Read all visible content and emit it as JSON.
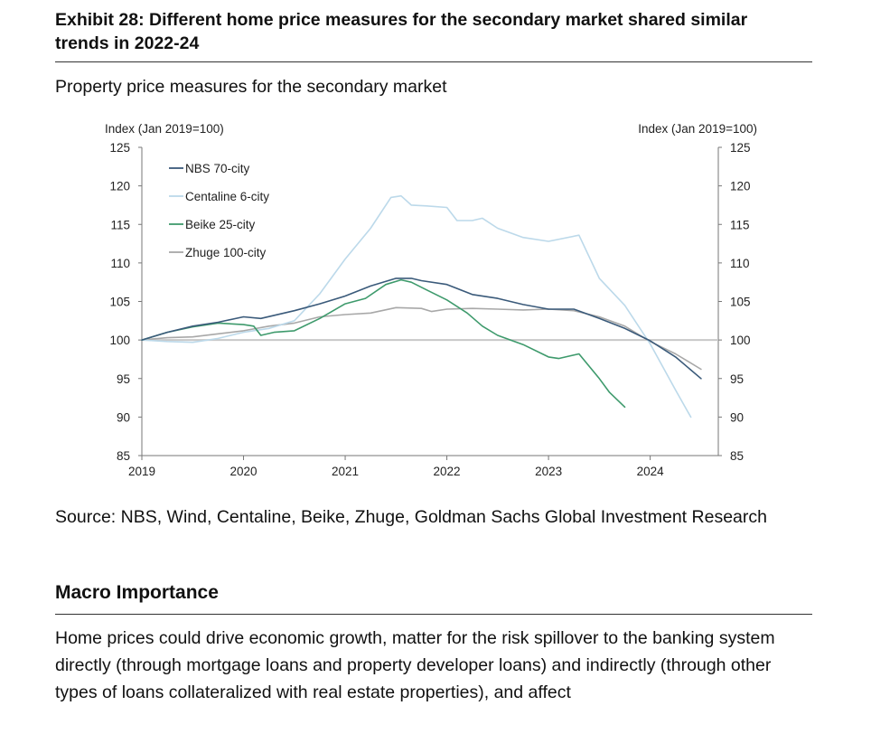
{
  "exhibit": {
    "title": "Exhibit 28: Different home price measures for the secondary market shared similar trends in 2022-24",
    "subtitle": "Property price measures for the secondary market",
    "source": "Source: NBS, Wind, Centaline, Beike, Zhuge, Goldman Sachs Global Investment Research"
  },
  "section": {
    "heading": "Macro Importance",
    "body": "Home prices could drive economic growth, matter for the risk spillover to the banking system directly (through mortgage loans and property developer loans) and indirectly (through other types of loans collateralized with real estate properties), and affect"
  },
  "chart_data": {
    "type": "line",
    "title": "",
    "ylabel_left": "Index (Jan 2019=100)",
    "ylabel_right": "Index (Jan 2019=100)",
    "ylim": [
      85,
      125
    ],
    "yticks": [
      85,
      90,
      95,
      100,
      105,
      110,
      115,
      120,
      125
    ],
    "xlim": [
      2019.0,
      2024.67
    ],
    "xticks": [
      2019,
      2020,
      2021,
      2022,
      2023,
      2024
    ],
    "reference_line": 100,
    "grid": false,
    "legend_position": "top-left",
    "series": [
      {
        "name": "NBS 70-city",
        "color": "#3a5a7a",
        "x": [
          2019.0,
          2019.25,
          2019.5,
          2019.75,
          2020.0,
          2020.17,
          2020.5,
          2020.75,
          2021.0,
          2021.25,
          2021.5,
          2021.65,
          2021.75,
          2022.0,
          2022.25,
          2022.5,
          2022.75,
          2023.0,
          2023.25,
          2023.5,
          2023.75,
          2024.0,
          2024.25,
          2024.5
        ],
        "y": [
          100.0,
          101.0,
          101.8,
          102.3,
          103.0,
          102.8,
          103.8,
          104.7,
          105.7,
          107.0,
          108.0,
          108.0,
          107.7,
          107.2,
          105.9,
          105.4,
          104.6,
          104.0,
          104.0,
          102.8,
          101.5,
          99.9,
          97.8,
          95.0
        ]
      },
      {
        "name": "Centaline 6-city",
        "color": "#bcd9ea",
        "x": [
          2019.0,
          2019.25,
          2019.5,
          2019.75,
          2020.0,
          2020.25,
          2020.5,
          2020.75,
          2021.0,
          2021.25,
          2021.45,
          2021.55,
          2021.65,
          2021.8,
          2022.0,
          2022.1,
          2022.25,
          2022.35,
          2022.5,
          2022.75,
          2023.0,
          2023.3,
          2023.5,
          2023.75,
          2024.0,
          2024.25,
          2024.4
        ],
        "y": [
          100.0,
          99.8,
          99.7,
          100.2,
          101.0,
          101.5,
          102.5,
          106.0,
          110.5,
          114.5,
          118.5,
          118.7,
          117.5,
          117.4,
          117.2,
          115.5,
          115.5,
          115.8,
          114.5,
          113.3,
          112.8,
          113.6,
          108.0,
          104.5,
          99.5,
          93.5,
          90.0
        ]
      },
      {
        "name": "Beike 25-city",
        "color": "#3e9a6c",
        "x": [
          2019.0,
          2019.25,
          2019.5,
          2019.75,
          2020.0,
          2020.1,
          2020.17,
          2020.3,
          2020.5,
          2020.75,
          2021.0,
          2021.2,
          2021.4,
          2021.55,
          2021.65,
          2021.8,
          2022.0,
          2022.2,
          2022.35,
          2022.5,
          2022.75,
          2023.0,
          2023.1,
          2023.3,
          2023.5,
          2023.6,
          2023.75
        ],
        "y": [
          100.0,
          101.0,
          101.7,
          102.2,
          102.0,
          101.8,
          100.6,
          101.0,
          101.2,
          102.8,
          104.7,
          105.4,
          107.2,
          107.8,
          107.5,
          106.5,
          105.2,
          103.5,
          101.8,
          100.6,
          99.4,
          97.8,
          97.6,
          98.2,
          95.0,
          93.2,
          91.3
        ]
      },
      {
        "name": "Zhuge 100-city",
        "color": "#a8a8a8",
        "x": [
          2019.0,
          2019.25,
          2019.5,
          2019.75,
          2020.0,
          2020.25,
          2020.5,
          2020.75,
          2021.0,
          2021.25,
          2021.5,
          2021.75,
          2021.85,
          2022.0,
          2022.25,
          2022.5,
          2022.75,
          2023.0,
          2023.25,
          2023.5,
          2023.75,
          2024.0,
          2024.25,
          2024.5
        ],
        "y": [
          100.0,
          100.3,
          100.4,
          100.8,
          101.2,
          101.8,
          102.2,
          103.0,
          103.3,
          103.5,
          104.2,
          104.1,
          103.7,
          104.0,
          104.1,
          104.0,
          103.9,
          104.0,
          103.8,
          103.0,
          101.8,
          99.8,
          98.2,
          96.2
        ]
      }
    ]
  }
}
